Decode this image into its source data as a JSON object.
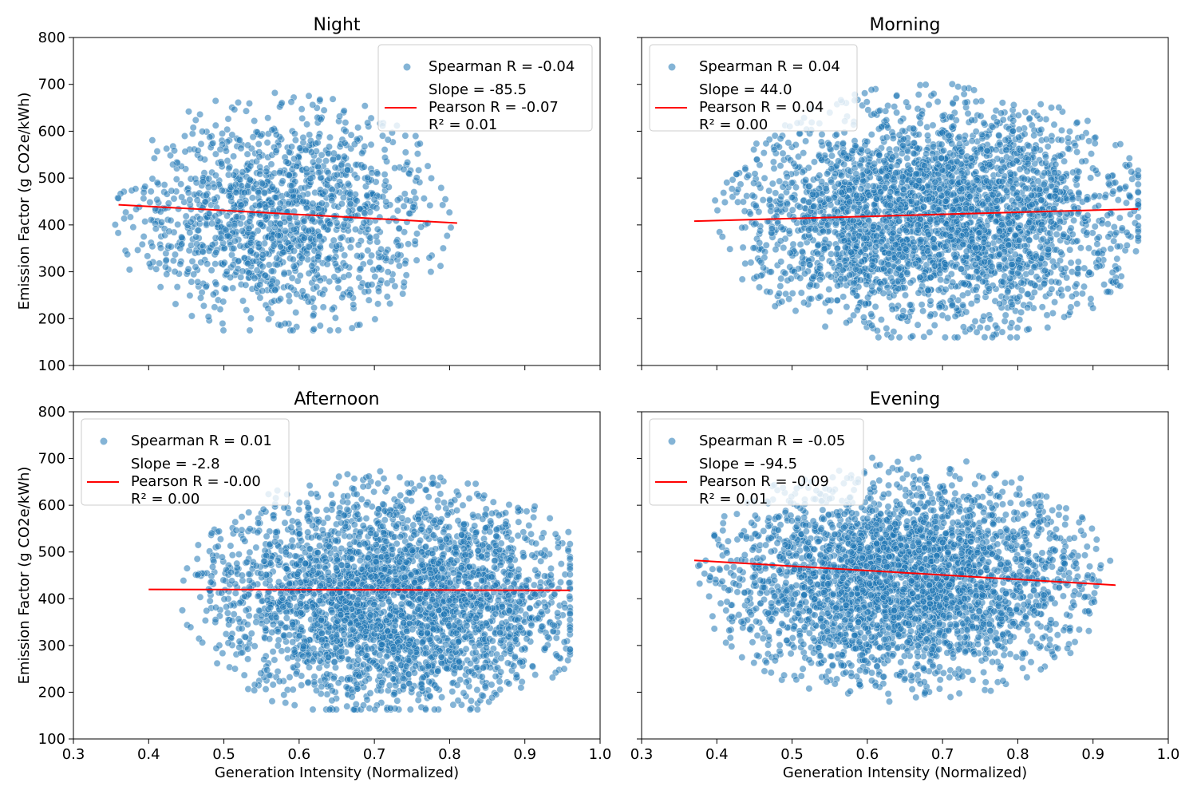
{
  "figure": {
    "xlabel": "Generation Intensity (Normalized)",
    "ylabel": "Emission Factor (g CO2e/kWh)",
    "point_color": "#1f77b4",
    "fit_color": "#ff0000"
  },
  "chart_data": [
    {
      "type": "scatter",
      "title": "Night",
      "xlabel": "",
      "ylabel": "Emission Factor (g CO2e/kWh)",
      "xlim": [
        0.3,
        1.0
      ],
      "ylim": [
        100,
        800
      ],
      "xticks": [
        0.3,
        0.4,
        0.5,
        0.6,
        0.7,
        0.8,
        0.9,
        1.0
      ],
      "yticks": [
        100,
        200,
        300,
        400,
        500,
        600,
        700,
        800
      ],
      "x_tick_labels_shown": false,
      "y_tick_labels_shown": true,
      "legend_position": "upper right",
      "legend": {
        "scatter_label": "Spearman R = -0.04",
        "fit_lines": [
          "Slope = -85.5",
          "Pearson R = -0.07",
          "R² = 0.01"
        ]
      },
      "fit": {
        "x": [
          0.36,
          0.81
        ],
        "y": [
          443,
          404
        ]
      },
      "point_cloud": {
        "x_range": [
          0.35,
          0.81
        ],
        "y_range": [
          175,
          712
        ],
        "center": [
          0.58,
          420
        ]
      }
    },
    {
      "type": "scatter",
      "title": "Morning",
      "xlabel": "",
      "ylabel": "",
      "xlim": [
        0.3,
        1.0
      ],
      "ylim": [
        100,
        800
      ],
      "xticks": [
        0.3,
        0.4,
        0.5,
        0.6,
        0.7,
        0.8,
        0.9,
        1.0
      ],
      "yticks": [
        100,
        200,
        300,
        400,
        500,
        600,
        700,
        800
      ],
      "x_tick_labels_shown": false,
      "y_tick_labels_shown": false,
      "legend_position": "upper left",
      "legend": {
        "scatter_label": "Spearman R = 0.04",
        "fit_lines": [
          "Slope = 44.0",
          "Pearson R = 0.04",
          "R² = 0.00"
        ]
      },
      "fit": {
        "x": [
          0.37,
          0.96
        ],
        "y": [
          408,
          434
        ]
      },
      "point_cloud": {
        "x_range": [
          0.37,
          0.96
        ],
        "y_range": [
          160,
          725
        ],
        "center": [
          0.69,
          420
        ]
      }
    },
    {
      "type": "scatter",
      "title": "Afternoon",
      "xlabel": "Generation Intensity (Normalized)",
      "ylabel": "Emission Factor (g CO2e/kWh)",
      "xlim": [
        0.3,
        1.0
      ],
      "ylim": [
        100,
        800
      ],
      "xticks": [
        0.3,
        0.4,
        0.5,
        0.6,
        0.7,
        0.8,
        0.9,
        1.0
      ],
      "yticks": [
        100,
        200,
        300,
        400,
        500,
        600,
        700,
        800
      ],
      "x_tick_labels_shown": true,
      "y_tick_labels_shown": true,
      "legend_position": "upper left",
      "legend": {
        "scatter_label": "Spearman R = 0.01",
        "fit_lines": [
          "Slope = -2.8",
          "Pearson R = -0.00",
          "R² = 0.00"
        ]
      },
      "fit": {
        "x": [
          0.4,
          0.96
        ],
        "y": [
          420,
          418
        ]
      },
      "point_cloud": {
        "x_range": [
          0.4,
          0.96
        ],
        "y_range": [
          163,
          712
        ],
        "center": [
          0.72,
          400
        ]
      }
    },
    {
      "type": "scatter",
      "title": "Evening",
      "xlabel": "Generation Intensity (Normalized)",
      "ylabel": "",
      "xlim": [
        0.3,
        1.0
      ],
      "ylim": [
        100,
        800
      ],
      "xticks": [
        0.3,
        0.4,
        0.5,
        0.6,
        0.7,
        0.8,
        0.9,
        1.0
      ],
      "yticks": [
        100,
        200,
        300,
        400,
        500,
        600,
        700,
        800
      ],
      "x_tick_labels_shown": true,
      "y_tick_labels_shown": false,
      "legend_position": "upper left",
      "legend": {
        "scatter_label": "Spearman R = -0.05",
        "fit_lines": [
          "Slope = -94.5",
          "Pearson R = -0.09",
          "R² = 0.01"
        ]
      },
      "fit": {
        "x": [
          0.37,
          0.93
        ],
        "y": [
          482,
          429
        ]
      },
      "point_cloud": {
        "x_range": [
          0.37,
          0.93
        ],
        "y_range": [
          180,
          712
        ],
        "center": [
          0.65,
          440
        ]
      }
    }
  ]
}
